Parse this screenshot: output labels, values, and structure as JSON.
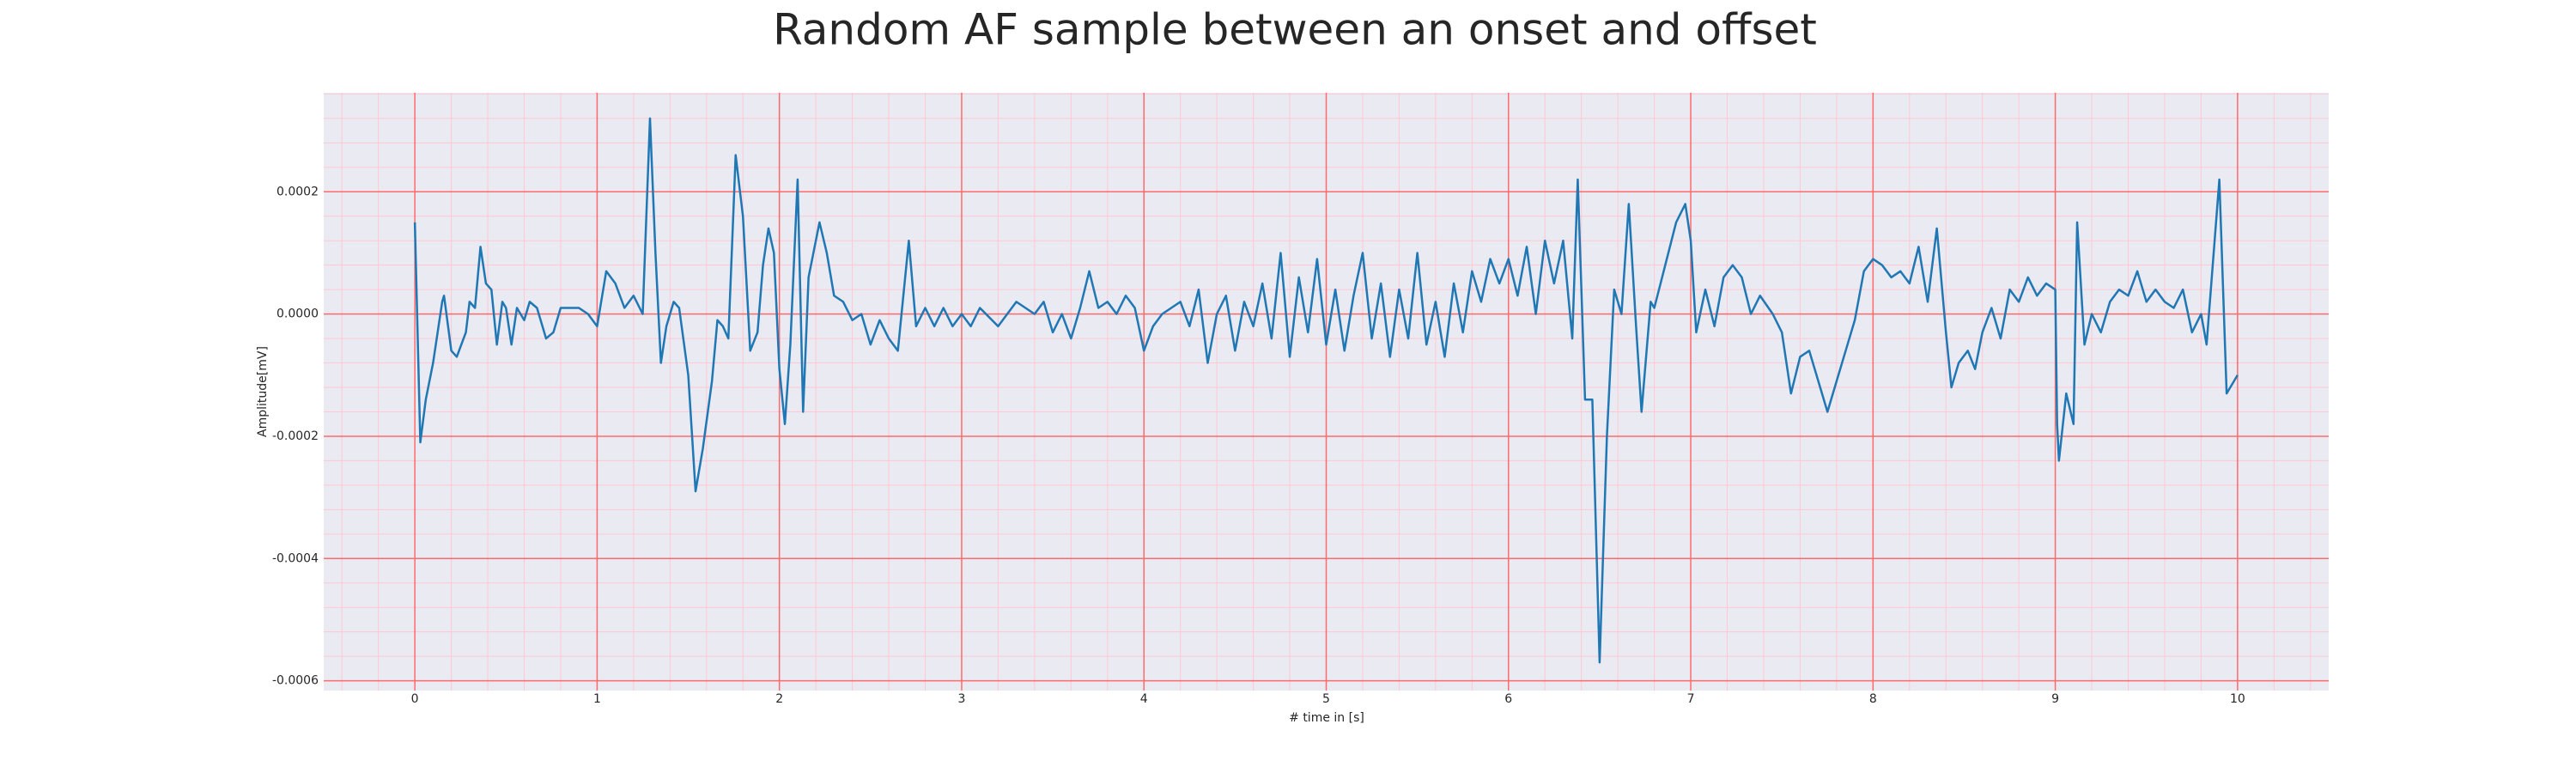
{
  "chart_data": {
    "type": "line",
    "title": "Random AF sample between an onset and offset",
    "xlabel": "# time in [s]",
    "ylabel": "Amplitude[mV]",
    "x": [
      0,
      0.03,
      0.06,
      0.1,
      0.15,
      0.16,
      0.2,
      0.23,
      0.28,
      0.3,
      0.33,
      0.36,
      0.39,
      0.42,
      0.45,
      0.48,
      0.5,
      0.53,
      0.56,
      0.6,
      0.63,
      0.67,
      0.72,
      0.76,
      0.8,
      0.85,
      0.9,
      0.95,
      1.0,
      1.05,
      1.1,
      1.15,
      1.2,
      1.25,
      1.29,
      1.32,
      1.35,
      1.38,
      1.42,
      1.45,
      1.5,
      1.54,
      1.58,
      1.63,
      1.66,
      1.69,
      1.72,
      1.76,
      1.8,
      1.84,
      1.88,
      1.91,
      1.94,
      1.97,
      2.0,
      2.03,
      2.06,
      2.1,
      2.13,
      2.16,
      2.22,
      2.26,
      2.3,
      2.35,
      2.4,
      2.45,
      2.5,
      2.55,
      2.6,
      2.65,
      2.71,
      2.75,
      2.8,
      2.85,
      2.9,
      2.95,
      3.0,
      3.05,
      3.1,
      3.2,
      3.3,
      3.4,
      3.45,
      3.5,
      3.55,
      3.6,
      3.65,
      3.7,
      3.75,
      3.8,
      3.85,
      3.9,
      3.95,
      4.0,
      4.05,
      4.1,
      4.15,
      4.2,
      4.25,
      4.3,
      4.35,
      4.4,
      4.45,
      4.5,
      4.55,
      4.6,
      4.65,
      4.7,
      4.75,
      4.8,
      4.85,
      4.9,
      4.95,
      5.0,
      5.05,
      5.1,
      5.15,
      5.2,
      5.25,
      5.3,
      5.35,
      5.4,
      5.45,
      5.5,
      5.55,
      5.6,
      5.65,
      5.7,
      5.75,
      5.8,
      5.85,
      5.9,
      5.95,
      6.0,
      6.05,
      6.1,
      6.15,
      6.2,
      6.25,
      6.3,
      6.35,
      6.38,
      6.42,
      6.46,
      6.5,
      6.54,
      6.58,
      6.62,
      6.66,
      6.7,
      6.73,
      6.78,
      6.8,
      6.86,
      6.92,
      6.97,
      7.0,
      7.03,
      7.08,
      7.13,
      7.18,
      7.23,
      7.28,
      7.33,
      7.38,
      7.45,
      7.5,
      7.55,
      7.6,
      7.65,
      7.7,
      7.75,
      7.8,
      7.85,
      7.9,
      7.95,
      8.0,
      8.05,
      8.1,
      8.15,
      8.2,
      8.25,
      8.3,
      8.35,
      8.4,
      8.43,
      8.47,
      8.52,
      8.56,
      8.6,
      8.65,
      8.7,
      8.75,
      8.8,
      8.85,
      8.9,
      8.95,
      9.0,
      9.01,
      9.02,
      9.06,
      9.1,
      9.12,
      9.16,
      9.2,
      9.25,
      9.3,
      9.35,
      9.4,
      9.45,
      9.5,
      9.55,
      9.6,
      9.65,
      9.7,
      9.75,
      9.8,
      9.83,
      9.9,
      9.94,
      9.98,
      10.0
    ],
    "values": [
      0.00015,
      -0.00021,
      -0.00014,
      -8e-05,
      2e-05,
      3e-05,
      -6e-05,
      -7e-05,
      -3e-05,
      2e-05,
      1e-05,
      0.00011,
      5e-05,
      4e-05,
      -5e-05,
      2e-05,
      1e-05,
      -5e-05,
      1e-05,
      -1e-05,
      2e-05,
      1e-05,
      -4e-05,
      -3e-05,
      1e-05,
      1e-05,
      1e-05,
      0,
      -2e-05,
      7e-05,
      5e-05,
      1e-05,
      3e-05,
      0,
      0.00032,
      0.0001,
      -8e-05,
      -2e-05,
      2e-05,
      1e-05,
      -0.0001,
      -0.00029,
      -0.00022,
      -0.00011,
      -1e-05,
      -2e-05,
      -4e-05,
      0.00026,
      0.00016,
      -6e-05,
      -3e-05,
      8e-05,
      0.00014,
      0.0001,
      -9e-05,
      -0.00018,
      -5e-05,
      0.00022,
      -0.00016,
      6e-05,
      0.00015,
      0.0001,
      3e-05,
      2e-05,
      -1e-05,
      0,
      -5e-05,
      -1e-05,
      -4e-05,
      -6e-05,
      0.00012,
      -2e-05,
      1e-05,
      -2e-05,
      1e-05,
      -2e-05,
      0,
      -2e-05,
      1e-05,
      -2e-05,
      2e-05,
      0,
      2e-05,
      -3e-05,
      0,
      -4e-05,
      1e-05,
      7e-05,
      1e-05,
      2e-05,
      0,
      3e-05,
      1e-05,
      -6e-05,
      -2e-05,
      0,
      1e-05,
      2e-05,
      -2e-05,
      4e-05,
      -8e-05,
      0,
      3e-05,
      -6e-05,
      2e-05,
      -2e-05,
      5e-05,
      -4e-05,
      0.0001,
      -7e-05,
      6e-05,
      -3e-05,
      9e-05,
      -5e-05,
      4e-05,
      -6e-05,
      3e-05,
      0.0001,
      -4e-05,
      5e-05,
      -7e-05,
      4e-05,
      -4e-05,
      0.0001,
      -5e-05,
      2e-05,
      -7e-05,
      5e-05,
      -3e-05,
      7e-05,
      2e-05,
      9e-05,
      5e-05,
      9e-05,
      3e-05,
      0.00011,
      0,
      0.00012,
      5e-05,
      0.00012,
      -4e-05,
      0.00022,
      -0.00014,
      -0.00014,
      -0.00057,
      -0.0002,
      4e-05,
      0,
      0.00018,
      -2e-05,
      -0.00016,
      2e-05,
      1e-05,
      8e-05,
      0.00015,
      0.00018,
      0.00012,
      -3e-05,
      4e-05,
      -2e-05,
      6e-05,
      8e-05,
      6e-05,
      0,
      3e-05,
      0,
      -3e-05,
      -0.00013,
      -7e-05,
      -6e-05,
      -0.00011,
      -0.00016,
      -0.00011,
      -6e-05,
      -1e-05,
      7e-05,
      9e-05,
      8e-05,
      6e-05,
      7e-05,
      5e-05,
      0.00011,
      2e-05,
      0.00014,
      -3e-05,
      -0.00012,
      -8e-05,
      -6e-05,
      -9e-05,
      -3e-05,
      1e-05,
      -4e-05,
      4e-05,
      2e-05,
      6e-05,
      3e-05,
      5e-05,
      4e-05,
      -0.00018,
      -0.00024,
      -0.00013,
      -0.00018,
      0.00015,
      -5e-05,
      0,
      -3e-05,
      2e-05,
      4e-05,
      3e-05,
      7e-05,
      2e-05,
      4e-05,
      2e-05,
      1e-05,
      4e-05,
      -3e-05,
      0,
      -5e-05,
      0.00022,
      -0.00013,
      -0.00011,
      -0.0001
    ],
    "color": "#1f77b4",
    "xlim": [
      -0.5,
      10.5
    ],
    "ylim": [
      -0.000616,
      0.000362
    ],
    "xticks": [
      0,
      1,
      2,
      3,
      4,
      5,
      6,
      7,
      8,
      9,
      10
    ],
    "yticks": [
      -0.0006,
      -0.0004,
      -0.0002,
      {
        "value": 0,
        "label": "0.0000"
      },
      0.0002
    ],
    "grid": true,
    "grid_color": "#ff6b6b",
    "minor_grid": true,
    "minor_grid_color": "#ffc8d2",
    "background": "#eaeaf2"
  }
}
